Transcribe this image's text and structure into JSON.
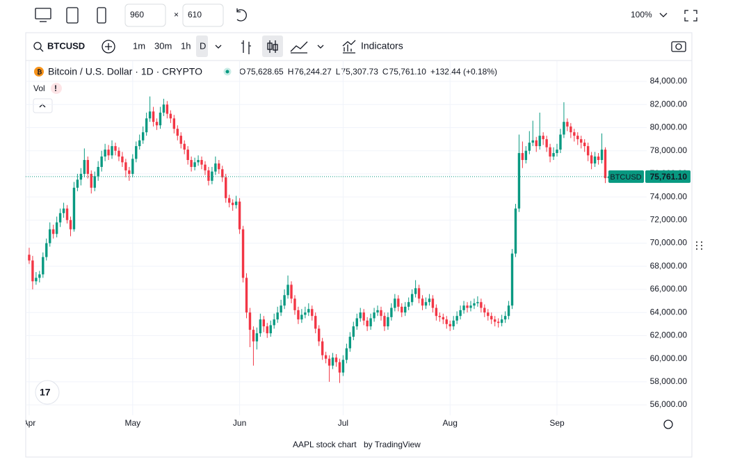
{
  "toolbar": {
    "width": "960",
    "times": "×",
    "height": "610",
    "zoom": "100%"
  },
  "widget": {
    "symbol": "BTCUSD",
    "intervals": [
      "1m",
      "30m",
      "1h",
      "D"
    ],
    "indicators": "Indicators",
    "vol": "Vol",
    "footer_link": "AAPL stock chart",
    "footer_by": "by TradingView"
  },
  "chart_data": {
    "type": "candlestick",
    "title": "Bitcoin / U.S. Dollar · 1D · CRYPTO",
    "legend": [
      [
        "O",
        "75,628.65"
      ],
      [
        "H",
        "76,244.27"
      ],
      [
        "L",
        "75,307.73"
      ],
      [
        "C",
        "75,761.10"
      ]
    ],
    "change": "+132.44 (+0.18%)",
    "symbol_label": "BTCUSD",
    "price_label": "75,761.10",
    "up_color": "#089981",
    "down_color": "#f23645",
    "grid": true,
    "xlim": [
      -1,
      179
    ],
    "xticks": [
      {
        "value": 0,
        "label": "Apr"
      },
      {
        "value": 30,
        "label": "May"
      },
      {
        "value": 61,
        "label": "Jun"
      },
      {
        "value": 91,
        "label": "Jul"
      },
      {
        "value": 122,
        "label": "Aug"
      },
      {
        "value": 153,
        "label": "Sep"
      }
    ],
    "ylim": [
      55100,
      85750
    ],
    "yticks": [
      {
        "value": 56000,
        "label": "56,000.00"
      },
      {
        "value": 58000,
        "label": "58,000.00"
      },
      {
        "value": 60000,
        "label": "60,000.00"
      },
      {
        "value": 62000,
        "label": "62,000.00"
      },
      {
        "value": 64000,
        "label": "64,000.00"
      },
      {
        "value": 66000,
        "label": "66,000.00"
      },
      {
        "value": 68000,
        "label": "68,000.00"
      },
      {
        "value": 70000,
        "label": "70,000.00"
      },
      {
        "value": 72000,
        "label": "72,000.00"
      },
      {
        "value": 74000,
        "label": "74,000.00"
      },
      {
        "value": 76000,
        "label": "76,000.00"
      },
      {
        "value": 78000,
        "label": "78,000.00"
      },
      {
        "value": 80000,
        "label": "80,000.00"
      },
      {
        "value": 82000,
        "label": "82,000.00"
      },
      {
        "value": 84000,
        "label": "84,000.00"
      }
    ],
    "ohlc": [
      [
        69000,
        69600,
        68200,
        68500
      ],
      [
        68500,
        68900,
        66000,
        66700
      ],
      [
        66700,
        67500,
        66400,
        67000
      ],
      [
        67000,
        67600,
        66600,
        67300
      ],
      [
        67300,
        69200,
        67000,
        68800
      ],
      [
        68800,
        70400,
        68500,
        70000
      ],
      [
        70000,
        71800,
        69700,
        71200
      ],
      [
        71200,
        71600,
        70400,
        70800
      ],
      [
        70800,
        72300,
        70500,
        71800
      ],
      [
        71800,
        73000,
        71400,
        72600
      ],
      [
        72600,
        73500,
        72200,
        73000
      ],
      [
        73000,
        73300,
        71700,
        72000
      ],
      [
        72000,
        72300,
        70600,
        71200
      ],
      [
        71200,
        75300,
        71000,
        74800
      ],
      [
        74800,
        76000,
        74500,
        75500
      ],
      [
        75500,
        76500,
        75000,
        76000
      ],
      [
        76000,
        78200,
        75700,
        77200
      ],
      [
        77200,
        77500,
        75600,
        76000
      ],
      [
        76000,
        76300,
        74300,
        74800
      ],
      [
        74800,
        76200,
        74500,
        75800
      ],
      [
        75800,
        77100,
        75400,
        76600
      ],
      [
        76600,
        78000,
        76200,
        77500
      ],
      [
        77500,
        78600,
        77100,
        78100
      ],
      [
        78100,
        78500,
        77200,
        77600
      ],
      [
        77600,
        78900,
        77300,
        78400
      ],
      [
        78400,
        78700,
        77600,
        78000
      ],
      [
        78000,
        78300,
        77100,
        77500
      ],
      [
        77500,
        77900,
        76600,
        77000
      ],
      [
        77000,
        77300,
        75700,
        76300
      ],
      [
        76300,
        76600,
        75400,
        76000
      ],
      [
        76000,
        77700,
        75700,
        77300
      ],
      [
        77300,
        78800,
        77000,
        78400
      ],
      [
        78400,
        79400,
        78100,
        78900
      ],
      [
        78900,
        80100,
        78600,
        79600
      ],
      [
        79600,
        81300,
        79300,
        80800
      ],
      [
        80800,
        82700,
        80500,
        81400
      ],
      [
        81400,
        81800,
        80100,
        80500
      ],
      [
        80500,
        80800,
        79800,
        80200
      ],
      [
        80200,
        81800,
        79900,
        81300
      ],
      [
        81300,
        82500,
        81000,
        82000
      ],
      [
        82000,
        82300,
        80800,
        81200
      ],
      [
        81200,
        81500,
        80400,
        80800
      ],
      [
        80800,
        81100,
        79500,
        79900
      ],
      [
        79900,
        80200,
        78900,
        79300
      ],
      [
        79300,
        79600,
        78200,
        78600
      ],
      [
        78600,
        78900,
        77700,
        78100
      ],
      [
        78100,
        78400,
        76800,
        77200
      ],
      [
        77200,
        77500,
        76200,
        76600
      ],
      [
        76600,
        77400,
        76300,
        77000
      ],
      [
        77000,
        77600,
        76700,
        77200
      ],
      [
        77200,
        77500,
        76400,
        76800
      ],
      [
        76800,
        77100,
        75900,
        76300
      ],
      [
        76300,
        76600,
        75000,
        75400
      ],
      [
        75400,
        76600,
        75100,
        76200
      ],
      [
        76200,
        77500,
        75900,
        76900
      ],
      [
        76900,
        77200,
        76000,
        76400
      ],
      [
        76400,
        76700,
        75300,
        75700
      ],
      [
        75700,
        76000,
        73500,
        73900
      ],
      [
        73900,
        74200,
        73100,
        73500
      ],
      [
        73500,
        73800,
        72800,
        73300
      ],
      [
        73300,
        74100,
        73000,
        73600
      ],
      [
        73600,
        73900,
        70800,
        71200
      ],
      [
        71200,
        71500,
        66600,
        67000
      ],
      [
        67000,
        67400,
        63500,
        64000
      ],
      [
        64000,
        64400,
        61000,
        62500
      ],
      [
        62500,
        62800,
        59400,
        61500
      ],
      [
        61500,
        62700,
        60800,
        62200
      ],
      [
        62200,
        63900,
        61900,
        63400
      ],
      [
        63400,
        63700,
        62300,
        62800
      ],
      [
        62800,
        63100,
        61800,
        62200
      ],
      [
        62200,
        63300,
        61900,
        62900
      ],
      [
        62900,
        63900,
        62600,
        63400
      ],
      [
        63400,
        64500,
        63100,
        64000
      ],
      [
        64000,
        65100,
        63700,
        64600
      ],
      [
        64600,
        66000,
        64300,
        65500
      ],
      [
        65500,
        67200,
        65200,
        66400
      ],
      [
        66400,
        66700,
        64800,
        65200
      ],
      [
        65200,
        65500,
        63800,
        64200
      ],
      [
        64200,
        64500,
        63000,
        63400
      ],
      [
        63400,
        64300,
        63100,
        63800
      ],
      [
        63800,
        64500,
        63500,
        64000
      ],
      [
        64000,
        64800,
        63700,
        64300
      ],
      [
        64300,
        64600,
        63300,
        63700
      ],
      [
        63700,
        64000,
        62200,
        62600
      ],
      [
        62600,
        62900,
        61100,
        61500
      ],
      [
        61500,
        61800,
        59900,
        60300
      ],
      [
        60300,
        60600,
        59600,
        60000
      ],
      [
        60000,
        60300,
        58000,
        59400
      ],
      [
        59400,
        60500,
        59100,
        60100
      ],
      [
        60100,
        60400,
        59300,
        59700
      ],
      [
        59700,
        60000,
        57900,
        58800
      ],
      [
        58800,
        60300,
        58500,
        59900
      ],
      [
        59900,
        61300,
        59600,
        60900
      ],
      [
        60900,
        62300,
        60600,
        61900
      ],
      [
        61900,
        63200,
        61600,
        62800
      ],
      [
        62800,
        63900,
        62500,
        63500
      ],
      [
        63500,
        64400,
        63200,
        64000
      ],
      [
        64000,
        64300,
        62900,
        63300
      ],
      [
        63300,
        63600,
        62400,
        62800
      ],
      [
        62800,
        63900,
        62500,
        63500
      ],
      [
        63500,
        64400,
        63200,
        64000
      ],
      [
        64000,
        64600,
        63700,
        64200
      ],
      [
        64200,
        64500,
        63300,
        63700
      ],
      [
        63700,
        64000,
        62400,
        62800
      ],
      [
        62800,
        64000,
        62500,
        63600
      ],
      [
        63600,
        64800,
        63300,
        64400
      ],
      [
        64400,
        65600,
        64100,
        65200
      ],
      [
        65200,
        65500,
        64100,
        64500
      ],
      [
        64500,
        64800,
        63600,
        64000
      ],
      [
        64000,
        64900,
        63700,
        64500
      ],
      [
        64500,
        65300,
        64200,
        64900
      ],
      [
        64900,
        66000,
        64600,
        65600
      ],
      [
        65600,
        66800,
        65300,
        66100
      ],
      [
        66100,
        66400,
        64800,
        65200
      ],
      [
        65200,
        65500,
        64200,
        64600
      ],
      [
        64600,
        65300,
        64300,
        64900
      ],
      [
        64900,
        65600,
        64600,
        65200
      ],
      [
        65200,
        65500,
        64000,
        64400
      ],
      [
        64400,
        64700,
        63300,
        63700
      ],
      [
        63700,
        64000,
        63200,
        63600
      ],
      [
        63600,
        63900,
        63000,
        63400
      ],
      [
        63400,
        63700,
        62600,
        63000
      ],
      [
        63000,
        63300,
        62400,
        62800
      ],
      [
        62800,
        63700,
        62500,
        63300
      ],
      [
        63300,
        64100,
        63000,
        63700
      ],
      [
        63700,
        64600,
        63400,
        64200
      ],
      [
        64200,
        65000,
        63900,
        64600
      ],
      [
        64600,
        64900,
        64000,
        64400
      ],
      [
        64400,
        65000,
        64100,
        64600
      ],
      [
        64600,
        65200,
        64300,
        64800
      ],
      [
        64800,
        65400,
        64500,
        64900
      ],
      [
        64900,
        65200,
        64000,
        64400
      ],
      [
        64400,
        64700,
        63600,
        64000
      ],
      [
        64000,
        64300,
        63300,
        63700
      ],
      [
        63700,
        64000,
        63000,
        63400
      ],
      [
        63400,
        63700,
        62800,
        63200
      ],
      [
        63200,
        63500,
        62700,
        63100
      ],
      [
        63100,
        63800,
        62800,
        63400
      ],
      [
        63400,
        64100,
        63100,
        63700
      ],
      [
        63700,
        65000,
        63400,
        64600
      ],
      [
        64600,
        69500,
        64300,
        69100
      ],
      [
        69100,
        73400,
        68800,
        73000
      ],
      [
        73000,
        79400,
        72700,
        77800
      ],
      [
        77800,
        78800,
        76500,
        77200
      ],
      [
        77200,
        78400,
        76900,
        78000
      ],
      [
        78000,
        79700,
        77700,
        78700
      ],
      [
        78700,
        80600,
        78400,
        78900
      ],
      [
        78900,
        79200,
        77900,
        78400
      ],
      [
        78400,
        81300,
        78100,
        79300
      ],
      [
        79300,
        79600,
        78500,
        79000
      ],
      [
        79000,
        79300,
        77900,
        78300
      ],
      [
        78300,
        78600,
        77000,
        77500
      ],
      [
        77500,
        78300,
        77200,
        77800
      ],
      [
        77800,
        78600,
        77500,
        78100
      ],
      [
        78100,
        79900,
        77800,
        79400
      ],
      [
        79400,
        82200,
        79100,
        80500
      ],
      [
        80500,
        80800,
        79700,
        80100
      ],
      [
        80100,
        80400,
        79100,
        79600
      ],
      [
        79600,
        79900,
        78800,
        79300
      ],
      [
        79300,
        79600,
        78500,
        79000
      ],
      [
        79000,
        79300,
        78200,
        78700
      ],
      [
        78700,
        79000,
        77900,
        78400
      ],
      [
        78400,
        78700,
        77100,
        77600
      ],
      [
        77600,
        77900,
        76400,
        76900
      ],
      [
        76900,
        77900,
        76600,
        77500
      ],
      [
        77500,
        77800,
        76800,
        77200
      ],
      [
        77200,
        79500,
        76900,
        78100
      ],
      [
        78100,
        78300,
        75200,
        75628.65
      ],
      [
        75628.65,
        76244.27,
        75307.73,
        75761.1
      ]
    ]
  }
}
